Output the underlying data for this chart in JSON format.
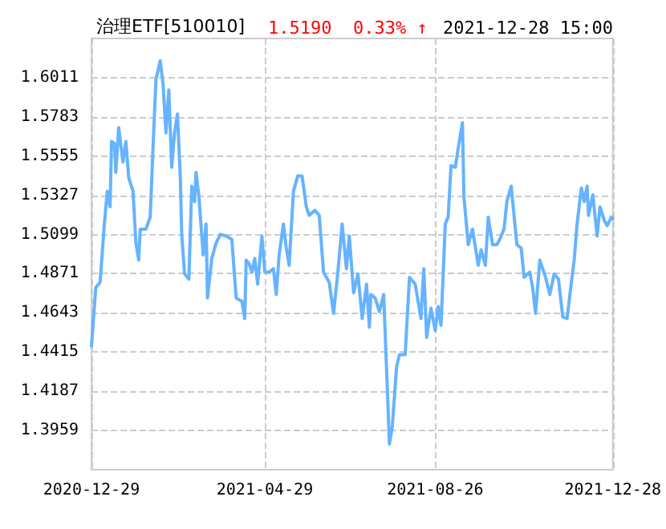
{
  "chart_data": {
    "type": "line",
    "title": "治理ETF[510010]",
    "subtitle": "1.5190  0.33% ↑",
    "annotations": [
      "2021-12-28 15:00"
    ],
    "x": [
      "2020-12-29",
      "2021-01-01",
      "2021-01-04",
      "2021-01-07",
      "2021-01-09",
      "2021-01-11",
      "2021-01-12",
      "2021-01-14",
      "2021-01-15",
      "2021-01-17",
      "2021-01-20",
      "2021-01-22",
      "2021-01-24",
      "2021-01-27",
      "2021-01-29",
      "2021-01-31",
      "2021-02-01",
      "2021-02-05",
      "2021-02-08",
      "2021-02-10",
      "2021-02-12",
      "2021-02-15",
      "2021-02-17",
      "2021-02-19",
      "2021-02-21",
      "2021-02-23",
      "2021-02-25",
      "2021-02-27",
      "2021-03-01",
      "2021-03-02",
      "2021-03-04",
      "2021-03-07",
      "2021-03-09",
      "2021-03-11",
      "2021-03-12",
      "2021-03-14",
      "2021-03-17",
      "2021-03-19",
      "2021-03-20",
      "2021-03-23",
      "2021-03-26",
      "2021-03-29",
      "2021-04-02",
      "2021-04-06",
      "2021-04-09",
      "2021-04-13",
      "2021-04-15",
      "2021-04-16",
      "2021-04-18",
      "2021-04-20",
      "2021-04-22",
      "2021-04-24",
      "2021-04-27",
      "2021-04-29",
      "2021-05-02",
      "2021-05-05",
      "2021-05-07",
      "2021-05-09",
      "2021-05-12",
      "2021-05-14",
      "2021-05-16",
      "2021-05-19",
      "2021-05-22",
      "2021-05-25",
      "2021-05-28",
      "2021-05-30",
      "2021-06-03",
      "2021-06-06",
      "2021-06-09",
      "2021-06-13",
      "2021-06-16",
      "2021-06-19",
      "2021-06-22",
      "2021-06-25",
      "2021-06-27",
      "2021-06-30",
      "2021-07-03",
      "2021-07-06",
      "2021-07-09",
      "2021-07-11",
      "2021-07-12",
      "2021-07-15",
      "2021-07-18",
      "2021-07-21",
      "2021-07-25",
      "2021-07-27",
      "2021-07-30",
      "2021-08-01",
      "2021-08-05",
      "2021-08-08",
      "2021-08-12",
      "2021-08-16",
      "2021-08-18",
      "2021-08-20",
      "2021-08-23",
      "2021-08-26",
      "2021-08-28",
      "2021-08-30",
      "2021-09-02",
      "2021-09-04",
      "2021-09-06",
      "2021-09-09",
      "2021-09-11",
      "2021-09-14",
      "2021-09-15",
      "2021-09-18",
      "2021-09-21",
      "2021-09-25",
      "2021-09-27",
      "2021-09-30",
      "2021-10-02",
      "2021-10-05",
      "2021-10-08",
      "2021-10-10",
      "2021-10-13",
      "2021-10-15",
      "2021-10-18",
      "2021-10-22",
      "2021-10-25",
      "2021-10-27",
      "2021-10-31",
      "2021-11-02",
      "2021-11-04",
      "2021-11-07",
      "2021-11-11",
      "2021-11-14",
      "2021-11-17",
      "2021-11-20",
      "2021-11-23",
      "2021-11-26",
      "2021-11-29",
      "2021-12-01",
      "2021-12-03",
      "2021-12-06",
      "2021-12-08",
      "2021-12-10",
      "2021-12-11",
      "2021-12-14",
      "2021-12-17",
      "2021-12-19",
      "2021-12-22",
      "2021-12-24",
      "2021-12-27",
      "2021-12-28"
    ],
    "series": [
      {
        "color": "#66b3ff",
        "values": [
          1.445,
          1.479,
          1.482,
          1.516,
          1.535,
          1.526,
          1.564,
          1.563,
          1.546,
          1.572,
          1.552,
          1.564,
          1.543,
          1.535,
          1.505,
          1.495,
          1.513,
          1.513,
          1.52,
          1.561,
          1.6,
          1.611,
          1.597,
          1.569,
          1.594,
          1.549,
          1.569,
          1.58,
          1.544,
          1.51,
          1.487,
          1.484,
          1.538,
          1.529,
          1.546,
          1.532,
          1.498,
          1.516,
          1.473,
          1.496,
          1.505,
          1.51,
          1.509,
          1.507,
          1.473,
          1.471,
          1.461,
          1.495,
          1.493,
          1.488,
          1.496,
          1.481,
          1.509,
          1.488,
          1.488,
          1.49,
          1.475,
          1.498,
          1.516,
          1.502,
          1.492,
          1.535,
          1.544,
          1.544,
          1.526,
          1.521,
          1.524,
          1.521,
          1.488,
          1.482,
          1.464,
          1.488,
          1.516,
          1.49,
          1.509,
          1.476,
          1.487,
          1.461,
          1.481,
          1.456,
          1.475,
          1.473,
          1.465,
          1.475,
          1.388,
          1.398,
          1.433,
          1.44,
          1.44,
          1.485,
          1.481,
          1.461,
          1.49,
          1.45,
          1.467,
          1.454,
          1.468,
          1.457,
          1.516,
          1.52,
          1.55,
          1.549,
          1.56,
          1.575,
          1.532,
          1.504,
          1.513,
          1.492,
          1.501,
          1.492,
          1.52,
          1.504,
          1.504,
          1.507,
          1.513,
          1.529,
          1.538,
          1.504,
          1.502,
          1.485,
          1.488,
          1.479,
          1.464,
          1.495,
          1.485,
          1.475,
          1.487,
          1.484,
          1.462,
          1.461,
          1.482,
          1.495,
          1.516,
          1.537,
          1.529,
          1.538,
          1.521,
          1.533,
          1.509,
          1.526,
          1.518,
          1.515,
          1.52,
          1.519
        ]
      }
    ],
    "xlim": [
      "2020-12-29",
      "2021-12-28"
    ],
    "xticks": [
      "2020-12-29",
      "2021-04-29",
      "2021-08-26",
      "2021-12-28"
    ],
    "ylim": [
      1.3731,
      1.6239
    ],
    "yticks": [
      1.3959,
      1.4187,
      1.4415,
      1.4643,
      1.4871,
      1.5099,
      1.5327,
      1.5555,
      1.5783,
      1.6011
    ],
    "grid": true,
    "marker": "none",
    "line_style": "solid"
  }
}
